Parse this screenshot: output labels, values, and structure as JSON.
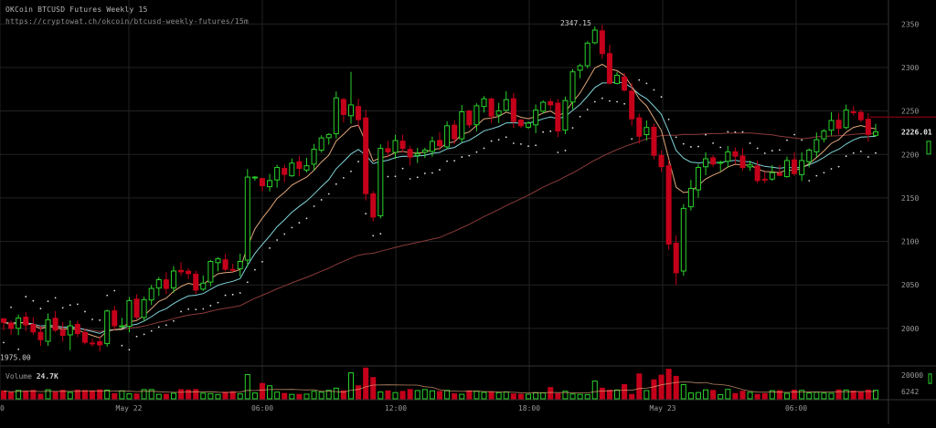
{
  "header": {
    "title": "OKCoin BTCUSD Futures Weekly 15",
    "url": "https://cryptowat.ch/okcoin/btcusd-weekly-futures/15m"
  },
  "colors": {
    "background": "#000000",
    "grid": "#222222",
    "up": "#2bd12b",
    "down": "#c4001a",
    "ema_fast": "#e0a679",
    "ema_slow": "#7fd3d8",
    "ma_long": "#8a3a3a",
    "sar": "#e0e0e0",
    "text": "#9a9a9a",
    "price_line": "#a00010"
  },
  "chart_data": {
    "type": "candlestick",
    "title": "OKCoin BTCUSD Futures Weekly 15",
    "price_axis": {
      "ticks": [
        2000,
        2050,
        2100,
        2150,
        2200,
        2250,
        2300,
        2350
      ],
      "range": [
        1960,
        2365
      ]
    },
    "time_axis": {
      "labels": [
        "0",
        "May 22",
        "06:00",
        "12:00",
        "18:00",
        "May 23",
        "06:00"
      ]
    },
    "annotations": {
      "high_label": "2347.15",
      "low_label": "1975.00",
      "last_price": "2226.01",
      "last_price_value": 2226.01
    },
    "candles": {
      "count": 119,
      "close": [
        2007,
        2000,
        2012,
        2004,
        1996,
        1987,
        2010,
        1998,
        1992,
        2003,
        1994,
        1984,
        1983,
        1981,
        2020,
        2003,
        2003,
        2032,
        2013,
        2033,
        2046,
        2056,
        2046,
        2066,
        2065,
        2063,
        2044,
        2052,
        2077,
        2080,
        2068,
        2067,
        2077,
        2174,
        2174,
        2164,
        2170,
        2185,
        2177,
        2190,
        2184,
        2187,
        2206,
        2219,
        2223,
        2265,
        2246,
        2257,
        2240,
        2155,
        2128,
        2207,
        2203,
        2216,
        2207,
        2197,
        2201,
        2205,
        2215,
        2210,
        2233,
        2218,
        2249,
        2234,
        2256,
        2264,
        2244,
        2250,
        2263,
        2238,
        2233,
        2236,
        2251,
        2260,
        2257,
        2227,
        2262,
        2295,
        2302,
        2328,
        2343,
        2316,
        2282,
        2291,
        2274,
        2241,
        2221,
        2231,
        2199,
        2186,
        2097,
        2064,
        2138,
        2161,
        2185,
        2195,
        2189,
        2191,
        2203,
        2198,
        2185,
        2188,
        2170,
        2171,
        2179,
        2176,
        2193,
        2178,
        2193,
        2205,
        2217,
        2227,
        2239,
        2230,
        2251,
        2248,
        2240,
        2223,
        2226.01
      ],
      "volume_scale": [
        0,
        24700
      ],
      "volume_ticks": [
        6242,
        20000
      ],
      "volume_label": "Volume",
      "volume_last": "24.7K"
    },
    "indicators": {
      "ema_fast": "EMA (fast)",
      "ema_slow": "EMA (slow)",
      "ma_long": "MA (long)",
      "parabolic_sar": "SAR"
    }
  }
}
